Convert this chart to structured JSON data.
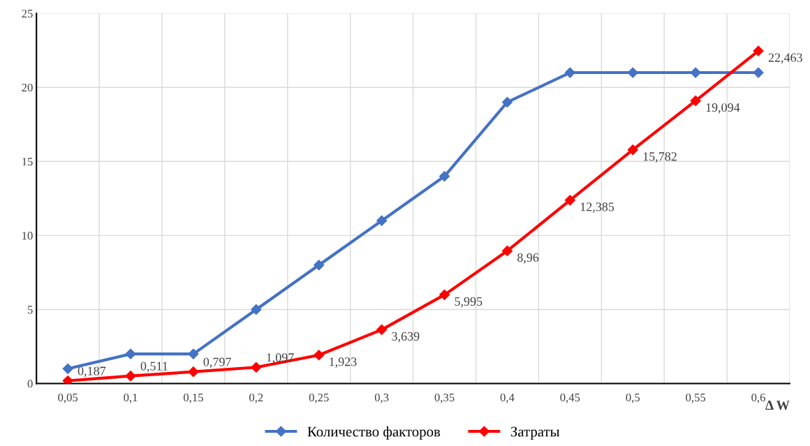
{
  "chart_data": {
    "type": "line",
    "categories": [
      "0,05",
      "0,1",
      "0,15",
      "0,2",
      "0,25",
      "0,3",
      "0,35",
      "0,4",
      "0,45",
      "0,5",
      "0,55",
      "0,6"
    ],
    "xlabel": "Δ W",
    "series": [
      {
        "name": "Количество факторов",
        "color": "#4472c4",
        "values": [
          1,
          2,
          2,
          5,
          8,
          11,
          14,
          19,
          21,
          21,
          21,
          21
        ]
      },
      {
        "name": "Затраты",
        "color": "#ff0000",
        "values": [
          0.187,
          0.511,
          0.797,
          1.097,
          1.923,
          3.639,
          5.995,
          8.96,
          12.385,
          15.782,
          19.094,
          22.463
        ],
        "value_labels": [
          "0,187",
          "0,511",
          "0,797",
          "1,097",
          "1,923",
          "3,639",
          "5,995",
          "8,96",
          "12,385",
          "15,782",
          "19,094",
          "22,463"
        ]
      }
    ],
    "ylim": [
      0,
      25
    ],
    "yticks": [
      0,
      5,
      10,
      15,
      20,
      25
    ],
    "grid": true,
    "legend": "bottom",
    "marker": "diamond",
    "line_style": "solid"
  }
}
